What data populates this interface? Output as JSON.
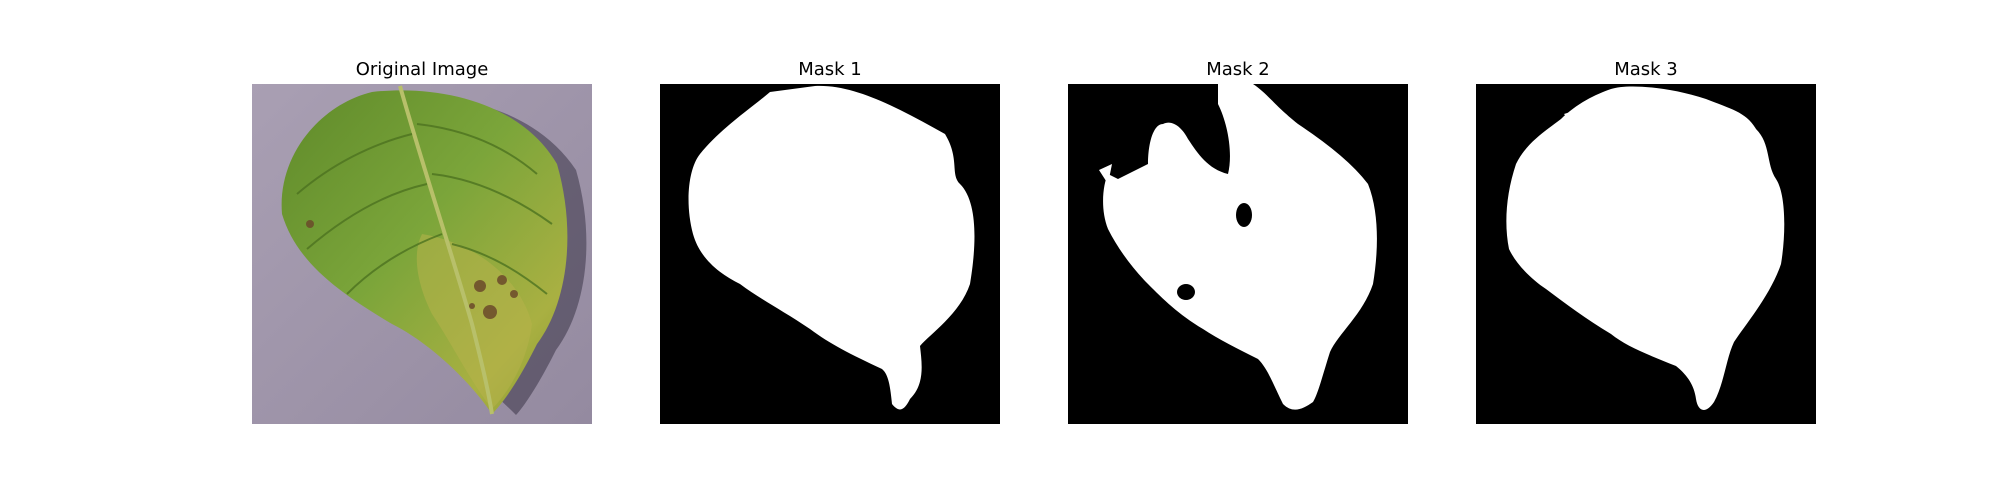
{
  "figure": {
    "panels": [
      {
        "title": "Original Image",
        "icon": "leaf-photo-icon"
      },
      {
        "title": "Mask 1",
        "icon": "leaf-mask-icon"
      },
      {
        "title": "Mask 2",
        "icon": "leaf-mask-icon"
      },
      {
        "title": "Mask 3",
        "icon": "leaf-mask-icon"
      }
    ],
    "colors": {
      "mask_background": "#000000",
      "mask_foreground": "#ffffff",
      "photo_background": "#a59daf",
      "leaf_green": "#6f9a33",
      "leaf_yellow": "#a7ad3a",
      "leaf_dark": "#2d4a12"
    }
  }
}
